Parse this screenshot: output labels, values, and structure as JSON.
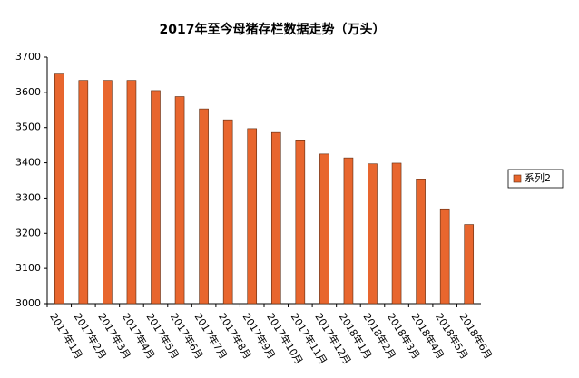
{
  "chart_data": {
    "type": "bar",
    "title": "2017年至今母猪存栏数据走势（万头）",
    "categories": [
      "2017年1月",
      "2017年2月",
      "2017年3月",
      "2017年4月",
      "2017年5月",
      "2017年6月",
      "2017年7月",
      "2017年8月",
      "2017年9月",
      "2017年10月",
      "2017年11月",
      "2017年12月",
      "2018年1月",
      "2018年2月",
      "2018年3月",
      "2018年4月",
      "2018年5月",
      "2018年6月"
    ],
    "series": [
      {
        "name": "系列2",
        "color": "#e8662e",
        "values": [
          3652,
          3634,
          3634,
          3634,
          3605,
          3588,
          3553,
          3522,
          3497,
          3486,
          3465,
          3425,
          3414,
          3397,
          3399,
          3352,
          3267,
          3225
        ]
      }
    ],
    "ylim": [
      3000,
      3700
    ],
    "yticks": [
      3000,
      3100,
      3200,
      3300,
      3400,
      3500,
      3600,
      3700
    ],
    "legend": "right"
  }
}
